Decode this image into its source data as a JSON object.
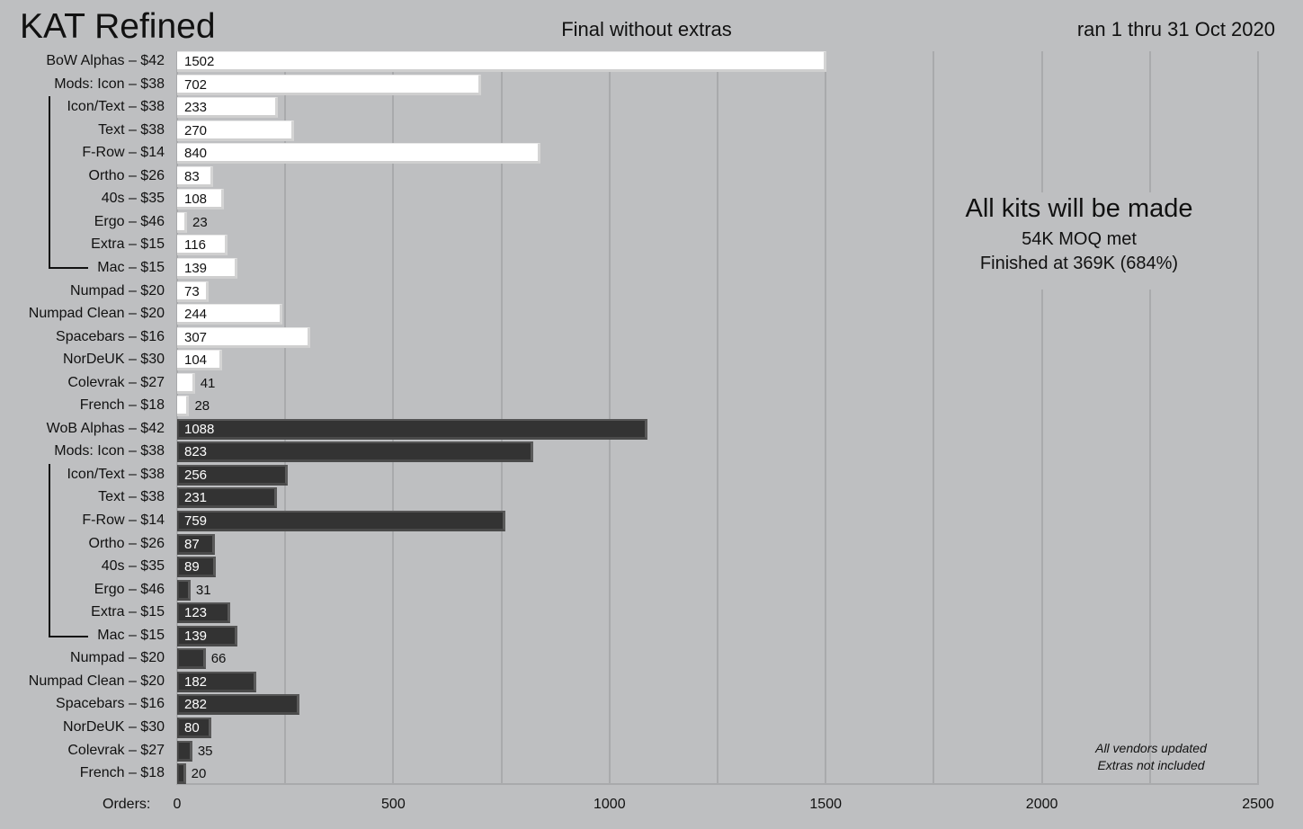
{
  "chart_data": {
    "type": "bar",
    "orientation": "horizontal",
    "title": "KAT Refined",
    "subtitle": "Final without extras",
    "date_range": "ran 1 thru 31 Oct 2020",
    "xlabel": "Orders:",
    "xlim": [
      0,
      2500
    ],
    "xticks": [
      0,
      500,
      1000,
      1500,
      2000,
      2500
    ],
    "grid_step": 250,
    "grid": true,
    "series": [
      {
        "color": "#ffffff",
        "categories": [
          "BoW Alphas – $42",
          "Mods:  Icon – $38",
          "Icon/Text – $38",
          "Text – $38",
          "F-Row – $14",
          "Ortho – $26",
          "40s – $35",
          "Ergo – $46",
          "Extra – $15",
          "Mac – $15",
          "Numpad – $20",
          "Numpad Clean – $20",
          "Spacebars – $16",
          "NorDeUK – $30",
          "Colevrak – $27",
          "French – $18"
        ],
        "values": [
          1502,
          702,
          233,
          270,
          840,
          83,
          108,
          23,
          116,
          139,
          73,
          244,
          307,
          104,
          41,
          28
        ]
      },
      {
        "color": "#333333",
        "categories": [
          "WoB Alphas – $42",
          "Mods:  Icon – $38",
          "Icon/Text – $38",
          "Text – $38",
          "F-Row – $14",
          "Ortho – $26",
          "40s – $35",
          "Ergo – $46",
          "Extra – $15",
          "Mac – $15",
          "Numpad – $20",
          "Numpad Clean – $20",
          "Spacebars – $16",
          "NorDeUK – $30",
          "Colevrak – $27",
          "French – $18"
        ],
        "values": [
          1088,
          823,
          256,
          231,
          759,
          87,
          89,
          31,
          123,
          139,
          66,
          182,
          282,
          80,
          35,
          20
        ]
      }
    ],
    "annotations": {
      "headline": "All kits will be made",
      "moq": "54K MOQ met",
      "finished": "Finished at 369K (684%)",
      "footnote_1": "All vendors updated",
      "footnote_2": "Extras not included"
    }
  }
}
